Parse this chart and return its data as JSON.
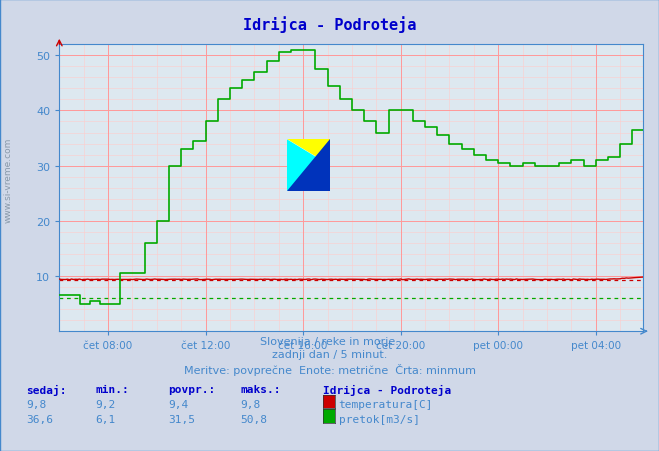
{
  "title": "Idrijca - Podroteja",
  "title_color": "#0000cc",
  "bg_color": "#d0d8e8",
  "plot_bg_color": "#dde8f0",
  "grid_color_major": "#ff9999",
  "grid_color_minor": "#ffcccc",
  "tick_color": "#4488cc",
  "text_color": "#4488cc",
  "watermark_color": "#8899aa",
  "subtitle1": "Slovenija / reke in morje.",
  "subtitle2": "zadnji dan / 5 minut.",
  "subtitle3": "Meritve: povprečne  Enote: metrične  Črta: minmum",
  "legend_title": "Idrijca - Podroteja",
  "legend_temp_label": "temperatura[C]",
  "legend_flow_label": "pretok[m3/s]",
  "temp_color": "#cc0000",
  "flow_color": "#00aa00",
  "ylim": [
    0,
    52
  ],
  "yticks": [
    10,
    20,
    30,
    40,
    50
  ],
  "n_points": 288,
  "x_tick_positions": [
    24,
    72,
    120,
    168,
    216,
    264
  ],
  "x_labels": [
    "čet 08:00",
    "čet 12:00",
    "čet 16:00",
    "čet 20:00",
    "pet 00:00",
    "pet 04:00"
  ],
  "stats_headers": [
    "sedaj:",
    "min.:",
    "povpr.:",
    "maks.:"
  ],
  "stats_temp": [
    "9,8",
    "9,2",
    "9,4",
    "9,8"
  ],
  "stats_flow": [
    "36,6",
    "6,1",
    "31,5",
    "50,8"
  ],
  "temp_min_line": 9.2,
  "flow_min_line": 6.1
}
